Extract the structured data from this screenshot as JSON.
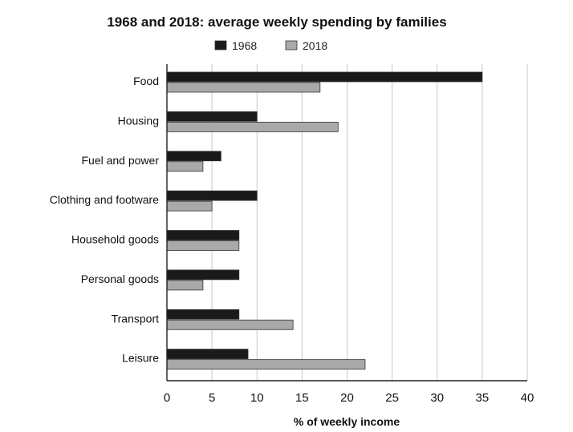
{
  "chart_data": {
    "type": "bar",
    "orientation": "horizontal",
    "title": "1968 and 2018: average weekly spending by families",
    "xlabel": "% of weekly income",
    "ylabel": "",
    "xlim": [
      0,
      40
    ],
    "xticks": [
      0,
      5,
      10,
      15,
      20,
      25,
      30,
      35,
      40
    ],
    "grid": true,
    "legend_position": "top-center",
    "categories": [
      "Food",
      "Housing",
      "Fuel and power",
      "Clothing and footware",
      "Household goods",
      "Personal goods",
      "Transport",
      "Leisure"
    ],
    "series": [
      {
        "name": "1968",
        "color": "#1a1a1a",
        "values": [
          35,
          10,
          6,
          10,
          8,
          8,
          8,
          9
        ]
      },
      {
        "name": "2018",
        "color": "#a9a9a9",
        "values": [
          17,
          19,
          4,
          5,
          8,
          4,
          14,
          22
        ]
      }
    ]
  }
}
